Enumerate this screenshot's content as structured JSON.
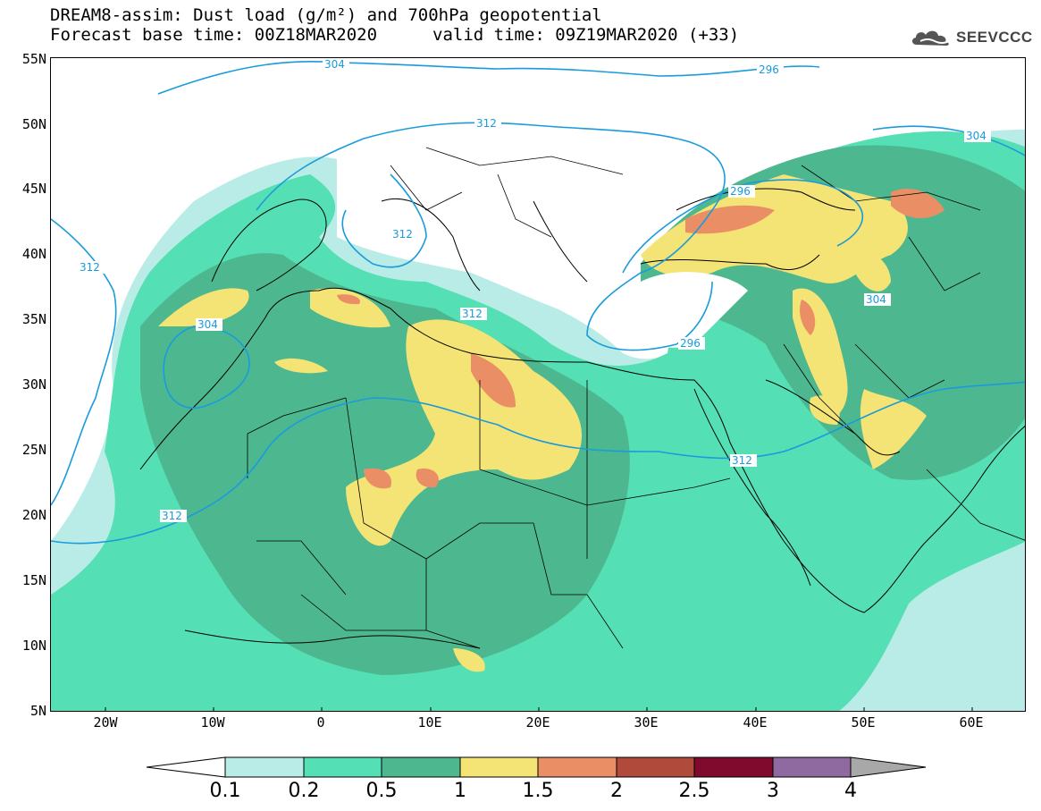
{
  "title": {
    "line1": "DREAM8-assim: Dust load (g/m²) and 700hPa geopotential",
    "line2": "Forecast base time: 00Z18MAR2020",
    "valid": "valid time: 09Z19MAR2020 (+33)"
  },
  "logo": {
    "text": "SEEVCCC",
    "icon": "cloud-logo-icon"
  },
  "axes": {
    "lat_labels": [
      "55N",
      "50N",
      "45N",
      "40N",
      "35N",
      "30N",
      "25N",
      "20N",
      "15N",
      "10N",
      "5N"
    ],
    "lon_labels": [
      "20W",
      "10W",
      "0",
      "10E",
      "20E",
      "30E",
      "40E",
      "50E",
      "60E"
    ],
    "lat_range": [
      5,
      55
    ],
    "lon_range": [
      -25,
      65
    ]
  },
  "contours": {
    "color": "#1a9bdc",
    "labels": [
      "304",
      "296",
      "312",
      "304",
      "296",
      "312",
      "304",
      "304",
      "312",
      "312",
      "312",
      "312",
      "296"
    ]
  },
  "colorbar": {
    "labels": [
      "0.1",
      "0.2",
      "0.5",
      "1",
      "1.5",
      "2",
      "2.5",
      "3",
      "4"
    ],
    "colors": [
      "#ffffff",
      "#b9ece6",
      "#55dfb4",
      "#4db88f",
      "#f4e375",
      "#ea8e66",
      "#b04a3b",
      "#7f0a2e",
      "#8f6aa0",
      "#a8a8a8"
    ]
  },
  "field_colors": {
    "light": "#b9ece6",
    "green": "#55dfb4",
    "dark": "#4db88f",
    "yellow": "#f4e375",
    "orange": "#ea8e66",
    "red": "#b04a3b"
  }
}
